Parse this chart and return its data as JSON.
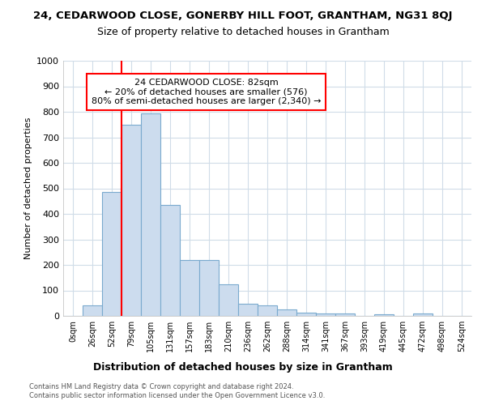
{
  "title_main": "24, CEDARWOOD CLOSE, GONERBY HILL FOOT, GRANTHAM, NG31 8QJ",
  "title_sub": "Size of property relative to detached houses in Grantham",
  "xlabel": "Distribution of detached houses by size in Grantham",
  "ylabel": "Number of detached properties",
  "bar_labels": [
    "0sqm",
    "26sqm",
    "52sqm",
    "79sqm",
    "105sqm",
    "131sqm",
    "157sqm",
    "183sqm",
    "210sqm",
    "236sqm",
    "262sqm",
    "288sqm",
    "314sqm",
    "341sqm",
    "367sqm",
    "393sqm",
    "419sqm",
    "445sqm",
    "472sqm",
    "498sqm",
    "524sqm"
  ],
  "bar_values": [
    0,
    40,
    485,
    750,
    795,
    435,
    220,
    220,
    125,
    48,
    42,
    25,
    12,
    9,
    9,
    0,
    7,
    0,
    9,
    0,
    0
  ],
  "bar_color": "#ccdcee",
  "bar_edge_color": "#7aaace",
  "vline_color": "red",
  "annotation_line1": "24 CEDARWOOD CLOSE: 82sqm",
  "annotation_line2": "← 20% of detached houses are smaller (576)",
  "annotation_line3": "80% of semi-detached houses are larger (2,340) →",
  "annotation_box_color": "white",
  "annotation_box_edge_color": "red",
  "ylim": [
    0,
    1000
  ],
  "yticks": [
    0,
    100,
    200,
    300,
    400,
    500,
    600,
    700,
    800,
    900,
    1000
  ],
  "footer_line1": "Contains HM Land Registry data © Crown copyright and database right 2024.",
  "footer_line2": "Contains public sector information licensed under the Open Government Licence v3.0.",
  "plot_bg_color": "#ffffff",
  "grid_color": "#d0dce8"
}
